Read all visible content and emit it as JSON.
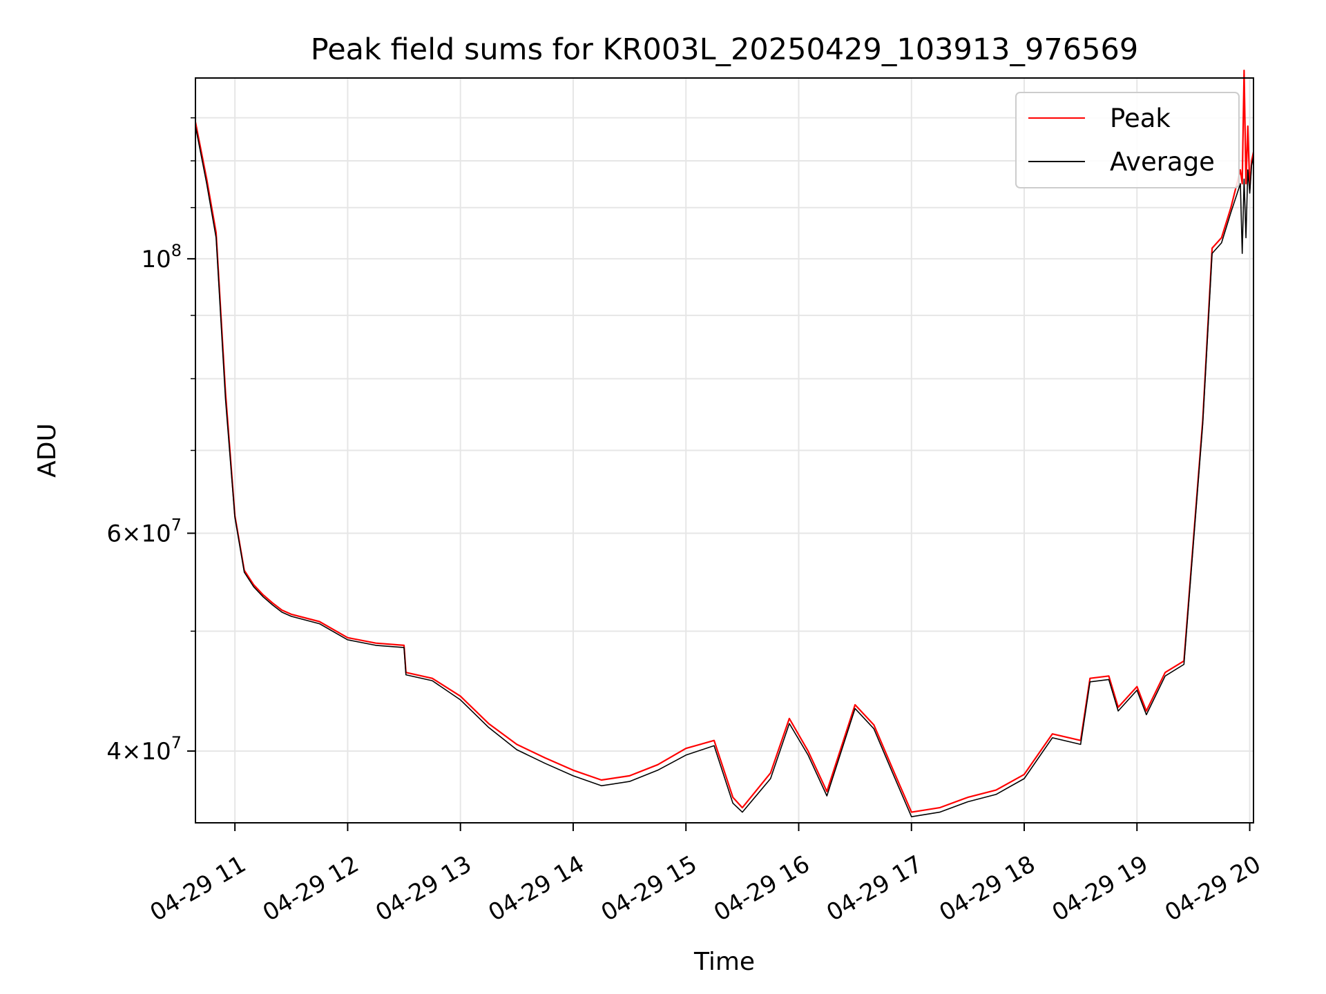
{
  "chart_data": {
    "type": "line",
    "title": "Peak field sums for KR003L_20250429_103913_976569",
    "xlabel": "Time",
    "ylabel": "ADU",
    "yscale": "log",
    "xlim": [
      "04-29 10:39",
      "04-29 20:02"
    ],
    "ylim": [
      35000000,
      140000000
    ],
    "grid": true,
    "legend_position": "upper right",
    "x_tick_labels": [
      "04-29 11",
      "04-29 12",
      "04-29 13",
      "04-29 14",
      "04-29 15",
      "04-29 16",
      "04-29 17",
      "04-29 18",
      "04-29 19",
      "04-29 20"
    ],
    "y_tick_labels": [
      {
        "value": 100000000,
        "mant": "",
        "exp": "8"
      },
      {
        "value": 60000000,
        "mant": "6",
        "exp": "7"
      },
      {
        "value": 40000000,
        "mant": "4",
        "exp": "7"
      }
    ],
    "x": [
      "04-29 10:39",
      "04-29 10:45",
      "04-29 10:50",
      "04-29 10:55",
      "04-29 11:00",
      "04-29 11:05",
      "04-29 11:10",
      "04-29 11:15",
      "04-29 11:20",
      "04-29 11:25",
      "04-29 11:30",
      "04-29 11:45",
      "04-29 12:00",
      "04-29 12:15",
      "04-29 12:30",
      "04-29 12:31",
      "04-29 12:45",
      "04-29 13:00",
      "04-29 13:15",
      "04-29 13:30",
      "04-29 13:45",
      "04-29 14:00",
      "04-29 14:15",
      "04-29 14:30",
      "04-29 14:45",
      "04-29 15:00",
      "04-29 15:15",
      "04-29 15:25",
      "04-29 15:30",
      "04-29 15:45",
      "04-29 15:55",
      "04-29 16:05",
      "04-29 16:15",
      "04-29 16:30",
      "04-29 16:40",
      "04-29 16:50",
      "04-29 17:00",
      "04-29 17:15",
      "04-29 17:30",
      "04-29 17:45",
      "04-29 18:00",
      "04-29 18:15",
      "04-29 18:30",
      "04-29 18:35",
      "04-29 18:45",
      "04-29 18:50",
      "04-29 19:00",
      "04-29 19:05",
      "04-29 19:15",
      "04-29 19:25",
      "04-29 19:35",
      "04-29 19:40",
      "04-29 19:45",
      "04-29 19:50",
      "04-29 19:55",
      "04-29 19:56",
      "04-29 19:57",
      "04-29 19:58",
      "04-29 19:59",
      "04-29 20:00",
      "04-29 20:01",
      "04-29 20:02"
    ],
    "series": [
      {
        "name": "Peak",
        "color": "#ff0000",
        "values": [
          129000000,
          116000000,
          105000000,
          78000000,
          62000000,
          56000000,
          54500000,
          53500000,
          52700000,
          52000000,
          51600000,
          50900000,
          49400000,
          48900000,
          48700000,
          46300000,
          45800000,
          44300000,
          42100000,
          40500000,
          39500000,
          38600000,
          37900000,
          38200000,
          39000000,
          40200000,
          40800000,
          36700000,
          36000000,
          38400000,
          42500000,
          40000000,
          37100000,
          43600000,
          42000000,
          38700000,
          35700000,
          36000000,
          36700000,
          37200000,
          38300000,
          41300000,
          40800000,
          45800000,
          46000000,
          43400000,
          45100000,
          43100000,
          46300000,
          47300000,
          74000000,
          102000000,
          104000000,
          110000000,
          118000000,
          115000000,
          142000000,
          115000000,
          128000000,
          114000000,
          120000000,
          122000000
        ]
      },
      {
        "name": "Average",
        "color": "#000000",
        "values": [
          128000000,
          115000000,
          104000000,
          77000000,
          61800000,
          55800000,
          54300000,
          53300000,
          52500000,
          51800000,
          51400000,
          50700000,
          49200000,
          48700000,
          48500000,
          46100000,
          45600000,
          44000000,
          41800000,
          40100000,
          39100000,
          38200000,
          37500000,
          37800000,
          38600000,
          39700000,
          40400000,
          36300000,
          35700000,
          38000000,
          42100000,
          39700000,
          36800000,
          43300000,
          41700000,
          38400000,
          35400000,
          35700000,
          36400000,
          36900000,
          38000000,
          41000000,
          40500000,
          45500000,
          45700000,
          43100000,
          44800000,
          42800000,
          46000000,
          47000000,
          73500000,
          101000000,
          103000000,
          109000000,
          115000000,
          101000000,
          116000000,
          104000000,
          118000000,
          113000000,
          119000000,
          121000000
        ]
      }
    ]
  }
}
